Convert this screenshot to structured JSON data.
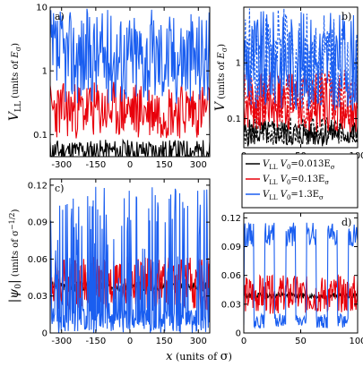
{
  "legend": {
    "entries": [
      {
        "symbol": "V",
        "sub": "LL",
        "label": "V",
        "label_sub": "0",
        "value": "=0.013E",
        "value_sub": "σ",
        "color": "#000000"
      },
      {
        "symbol": "V",
        "sub": "LL",
        "label": "V",
        "label_sub": "0",
        "value": "=0.13E",
        "value_sub": "σ",
        "color": "#e8000b"
      },
      {
        "symbol": "V",
        "sub": "LL",
        "label": "V",
        "label_sub": "0",
        "value": "=1.3E",
        "value_sub": "σ",
        "color": "#1a5ef0"
      }
    ]
  },
  "colors": {
    "black": "#000000",
    "red": "#e8000b",
    "blue": "#1a5ef0"
  },
  "chart_data": [
    {
      "panel": "a)",
      "type": "line",
      "yscale": "log",
      "xlim": [
        -350,
        350
      ],
      "ylim": [
        0.045,
        10
      ],
      "xticks": [
        "-300",
        "-150",
        "0",
        "150",
        "300"
      ],
      "xtick_values": [
        -300,
        -150,
        0,
        150,
        300
      ],
      "yticks": [
        "0.1",
        "1",
        "10"
      ],
      "ytick_values": [
        0.1,
        1,
        10
      ],
      "ylabel_main": "V",
      "ylabel_sub": "LL",
      "ylabel_units_pre": "(units of ",
      "ylabel_units_sym": "E",
      "ylabel_units_sub": "σ",
      "ylabel_units_post": ")",
      "series": [
        {
          "color": "#000000",
          "center": 0.055,
          "spread": 0.18,
          "points": 240,
          "seed": 11
        },
        {
          "color": "#e8000b",
          "center": 0.24,
          "spread": 0.45,
          "points": 240,
          "seed": 23
        },
        {
          "color": "#1a5ef0",
          "center": 1.7,
          "spread": 0.75,
          "points": 240,
          "seed": 37
        }
      ]
    },
    {
      "panel": "b)",
      "type": "line",
      "yscale": "log",
      "xlim": [
        0,
        100
      ],
      "ylim": [
        0.03,
        10
      ],
      "xticks": [
        "0",
        "50",
        "100"
      ],
      "xtick_values": [
        0,
        50,
        100
      ],
      "yticks": [
        "0.1",
        "1"
      ],
      "ytick_values": [
        0.1,
        1
      ],
      "ylabel_main": "V",
      "ylabel_units_pre": "(units of ",
      "ylabel_units_sym": "E",
      "ylabel_units_sub": "σ",
      "ylabel_units_post": ")",
      "series": [
        {
          "color": "#000000",
          "center": 0.055,
          "spread": 0.25,
          "points": 140,
          "seed": 5,
          "dashed": false
        },
        {
          "color": "#000000",
          "center": 0.06,
          "spread": 0.25,
          "points": 140,
          "seed": 6,
          "dashed": true
        },
        {
          "color": "#e8000b",
          "center": 0.2,
          "spread": 0.55,
          "points": 140,
          "seed": 7,
          "dashed": false
        },
        {
          "color": "#e8000b",
          "center": 0.22,
          "spread": 0.55,
          "points": 140,
          "seed": 8,
          "dashed": true
        },
        {
          "color": "#1a5ef0",
          "center": 1.1,
          "spread": 0.9,
          "points": 140,
          "seed": 9,
          "dashed": false
        },
        {
          "color": "#1a5ef0",
          "center": 1.2,
          "spread": 0.9,
          "points": 140,
          "seed": 10,
          "dashed": true
        }
      ]
    },
    {
      "panel": "c)",
      "type": "line",
      "yscale": "linear",
      "xlim": [
        -350,
        350
      ],
      "ylim": [
        0,
        0.125
      ],
      "xticks": [
        "-300",
        "-150",
        "0",
        "150",
        "300"
      ],
      "xtick_values": [
        -300,
        -150,
        0,
        150,
        300
      ],
      "yticks": [
        "0",
        "0.03",
        "0.06",
        "0.09",
        "0.12"
      ],
      "ytick_values": [
        0,
        0.03,
        0.06,
        0.09,
        0.12
      ],
      "ylabel_main": "|ψ",
      "ylabel_sub": "0",
      "ylabel_close": "|",
      "ylabel_units_pre": "(units of σ",
      "ylabel_units_sup": "−1/2",
      "ylabel_units_post": ")",
      "series": [
        {
          "color": "#000000",
          "center": 0.038,
          "amp": 0.004,
          "points": 320,
          "seed": 3,
          "kind": "flat"
        },
        {
          "color": "#e8000b",
          "center": 0.04,
          "amp": 0.022,
          "points": 320,
          "seed": 4,
          "kind": "mid"
        },
        {
          "color": "#1a5ef0",
          "center": 0.02,
          "amp": 0.1,
          "points": 320,
          "seed": 2,
          "kind": "spiky"
        }
      ]
    },
    {
      "panel": "d)",
      "type": "line",
      "yscale": "linear",
      "xlim": [
        0,
        100
      ],
      "ylim": [
        0,
        0.125
      ],
      "xticks": [
        "0",
        "50",
        "100"
      ],
      "xtick_values": [
        0,
        50,
        100
      ],
      "yticks": [
        "0",
        "0.03",
        "0.06",
        "0.09",
        "0.12"
      ],
      "ytick_values": [
        0,
        0.03,
        0.06,
        0.09,
        0.12
      ],
      "series": [
        {
          "color": "#000000",
          "center": 0.039,
          "amp": 0.003,
          "points": 200,
          "seed": 13,
          "kind": "flat"
        },
        {
          "color": "#e8000b",
          "center": 0.04,
          "amp": 0.02,
          "points": 200,
          "seed": 14,
          "kind": "mid"
        },
        {
          "color": "#1a5ef0",
          "center": 0.02,
          "amp": 0.1,
          "points": 200,
          "seed": 15,
          "kind": "peaks"
        }
      ]
    }
  ],
  "xlabel": {
    "sym": "x",
    "pre": "(units of ",
    "unit": "σ",
    "post": ")"
  }
}
